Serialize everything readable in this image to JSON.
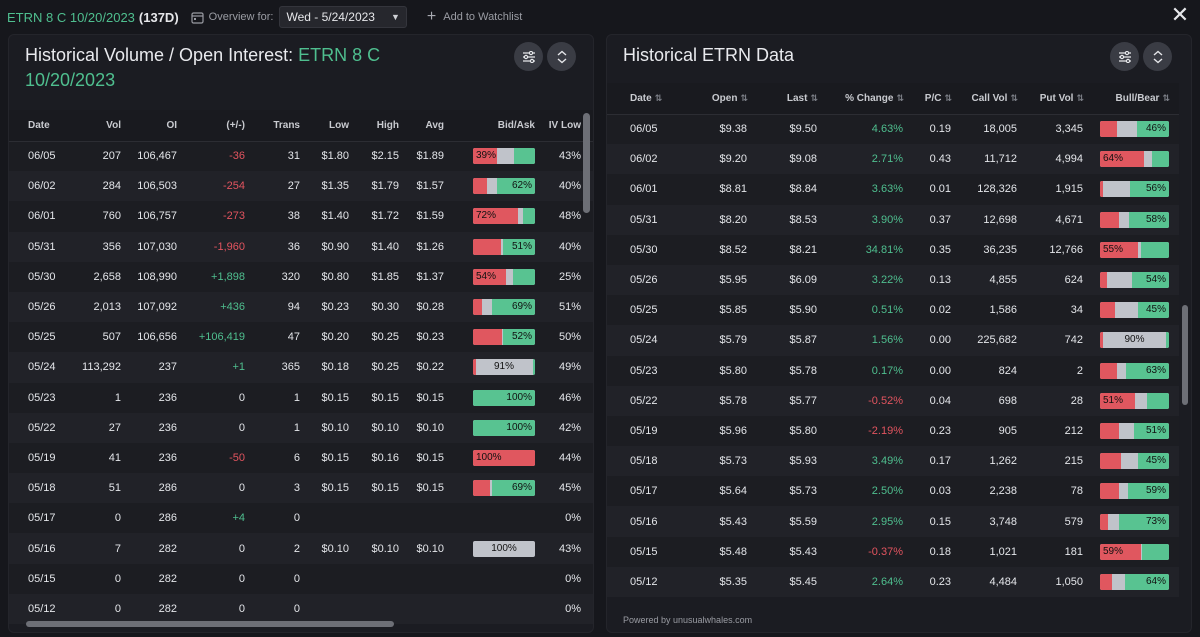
{
  "header": {
    "contract": "ETRN 8 C 10/20/2023",
    "days": "(137D)",
    "overview_label": "Overview for:",
    "overview_date": "Wed - 5/24/2023",
    "add_watchlist": "Add to Watchlist",
    "close": "✕"
  },
  "left_panel": {
    "title_prefix": "Historical Volume / Open Interest: ",
    "title_contract_line1": "ETRN 8 C",
    "title_contract_line2": "10/20/2023",
    "columns": [
      "Date",
      "Vol",
      "OI",
      "(+/-)",
      "Trans",
      "Low",
      "High",
      "Avg",
      "Bid/Ask",
      "IV Low",
      "IV"
    ],
    "rows": [
      {
        "date": "06/05",
        "vol": "207",
        "oi": "106,467",
        "chg": "-36",
        "chg_dir": "neg",
        "trans": "31",
        "low": "$1.80",
        "high": "$2.15",
        "avg": "$1.89",
        "bar": {
          "red": 0.39,
          "grey": 0.27,
          "green": 0.34,
          "label": "39%",
          "label_side": "left"
        },
        "ivlow": "43%"
      },
      {
        "date": "06/02",
        "vol": "284",
        "oi": "106,503",
        "chg": "-254",
        "chg_dir": "neg",
        "trans": "27",
        "low": "$1.35",
        "high": "$1.79",
        "avg": "$1.57",
        "bar": {
          "red": 0.22,
          "grey": 0.16,
          "green": 0.62,
          "label": "62%",
          "label_side": "right"
        },
        "ivlow": "40%"
      },
      {
        "date": "06/01",
        "vol": "760",
        "oi": "106,757",
        "chg": "-273",
        "chg_dir": "neg",
        "trans": "38",
        "low": "$1.40",
        "high": "$1.72",
        "avg": "$1.59",
        "bar": {
          "red": 0.72,
          "grey": 0.08,
          "green": 0.2,
          "label": "72%",
          "label_side": "left"
        },
        "ivlow": "48%"
      },
      {
        "date": "05/31",
        "vol": "356",
        "oi": "107,030",
        "chg": "-1,960",
        "chg_dir": "neg",
        "trans": "36",
        "low": "$0.90",
        "high": "$1.40",
        "avg": "$1.26",
        "bar": {
          "red": 0.45,
          "grey": 0.04,
          "green": 0.51,
          "label": "51%",
          "label_side": "right"
        },
        "ivlow": "40%"
      },
      {
        "date": "05/30",
        "vol": "2,658",
        "oi": "108,990",
        "chg": "+1,898",
        "chg_dir": "pos",
        "trans": "320",
        "low": "$0.80",
        "high": "$1.85",
        "avg": "$1.37",
        "bar": {
          "red": 0.54,
          "grey": 0.1,
          "green": 0.36,
          "label": "54%",
          "label_side": "left"
        },
        "ivlow": "25%"
      },
      {
        "date": "05/26",
        "vol": "2,013",
        "oi": "107,092",
        "chg": "+436",
        "chg_dir": "pos",
        "trans": "94",
        "low": "$0.23",
        "high": "$0.30",
        "avg": "$0.28",
        "bar": {
          "red": 0.15,
          "grey": 0.16,
          "green": 0.69,
          "label": "69%",
          "label_side": "right"
        },
        "ivlow": "51%"
      },
      {
        "date": "05/25",
        "vol": "507",
        "oi": "106,656",
        "chg": "+106,419",
        "chg_dir": "pos",
        "trans": "47",
        "low": "$0.20",
        "high": "$0.25",
        "avg": "$0.23",
        "bar": {
          "red": 0.46,
          "grey": 0.02,
          "green": 0.52,
          "label": "52%",
          "label_side": "right"
        },
        "ivlow": "50%"
      },
      {
        "date": "05/24",
        "vol": "113,292",
        "oi": "237",
        "chg": "+1",
        "chg_dir": "pos",
        "trans": "365",
        "low": "$0.18",
        "high": "$0.25",
        "avg": "$0.22",
        "bar": {
          "red": 0.05,
          "grey": 0.91,
          "green": 0.04,
          "label": "91%",
          "label_side": "center"
        },
        "ivlow": "49%"
      },
      {
        "date": "05/23",
        "vol": "1",
        "oi": "236",
        "chg": "0",
        "chg_dir": "none",
        "trans": "1",
        "low": "$0.15",
        "high": "$0.15",
        "avg": "$0.15",
        "bar": {
          "red": 0,
          "grey": 0,
          "green": 1.0,
          "label": "100%",
          "label_side": "right"
        },
        "ivlow": "46%"
      },
      {
        "date": "05/22",
        "vol": "27",
        "oi": "236",
        "chg": "0",
        "chg_dir": "none",
        "trans": "1",
        "low": "$0.10",
        "high": "$0.10",
        "avg": "$0.10",
        "bar": {
          "red": 0,
          "grey": 0,
          "green": 1.0,
          "label": "100%",
          "label_side": "right"
        },
        "ivlow": "42%"
      },
      {
        "date": "05/19",
        "vol": "41",
        "oi": "236",
        "chg": "-50",
        "chg_dir": "neg",
        "trans": "6",
        "low": "$0.15",
        "high": "$0.16",
        "avg": "$0.15",
        "bar": {
          "red": 1.0,
          "grey": 0,
          "green": 0,
          "label": "100%",
          "label_side": "left"
        },
        "ivlow": "44%"
      },
      {
        "date": "05/18",
        "vol": "51",
        "oi": "286",
        "chg": "0",
        "chg_dir": "none",
        "trans": "3",
        "low": "$0.15",
        "high": "$0.15",
        "avg": "$0.15",
        "bar": {
          "red": 0.27,
          "grey": 0.04,
          "green": 0.69,
          "label": "69%",
          "label_side": "right"
        },
        "ivlow": "45%"
      },
      {
        "date": "05/17",
        "vol": "0",
        "oi": "286",
        "chg": "+4",
        "chg_dir": "pos",
        "trans": "0",
        "low": "",
        "high": "",
        "avg": "",
        "bar": null,
        "ivlow": "0%"
      },
      {
        "date": "05/16",
        "vol": "7",
        "oi": "282",
        "chg": "0",
        "chg_dir": "none",
        "trans": "2",
        "low": "$0.10",
        "high": "$0.10",
        "avg": "$0.10",
        "bar": {
          "red": 0,
          "grey": 1.0,
          "green": 0,
          "label": "100%",
          "label_side": "center"
        },
        "ivlow": "43%"
      },
      {
        "date": "05/15",
        "vol": "0",
        "oi": "282",
        "chg": "0",
        "chg_dir": "none",
        "trans": "0",
        "low": "",
        "high": "",
        "avg": "",
        "bar": null,
        "ivlow": "0%"
      },
      {
        "date": "05/12",
        "vol": "0",
        "oi": "282",
        "chg": "0",
        "chg_dir": "none",
        "trans": "0",
        "low": "",
        "high": "",
        "avg": "",
        "bar": null,
        "ivlow": "0%"
      }
    ]
  },
  "right_panel": {
    "title": "Historical ETRN Data",
    "columns": [
      "Date",
      "Open",
      "Last",
      "% Change",
      "P/C",
      "Call Vol",
      "Put Vol",
      "Bull/Bear"
    ],
    "sort_glyph": "⇅",
    "powered_by": "Powered by unusualwhales.com",
    "rows": [
      {
        "date": "06/05",
        "open": "$9.38",
        "last": "$9.50",
        "chg": "4.63%",
        "chg_dir": "pos",
        "pc": "0.19",
        "call": "18,005",
        "put": "3,345",
        "bar": {
          "red": 0.24,
          "grey": 0.3,
          "green": 0.46,
          "label": "46%",
          "label_side": "right"
        }
      },
      {
        "date": "06/02",
        "open": "$9.20",
        "last": "$9.08",
        "chg": "2.71%",
        "chg_dir": "pos",
        "pc": "0.43",
        "call": "11,712",
        "put": "4,994",
        "bar": {
          "red": 0.64,
          "grey": 0.12,
          "green": 0.24,
          "label": "64%",
          "label_side": "left"
        }
      },
      {
        "date": "06/01",
        "open": "$8.81",
        "last": "$8.84",
        "chg": "3.63%",
        "chg_dir": "pos",
        "pc": "0.01",
        "call": "128,326",
        "put": "1,915",
        "bar": {
          "red": 0.05,
          "grey": 0.39,
          "green": 0.56,
          "label": "56%",
          "label_side": "right"
        }
      },
      {
        "date": "05/31",
        "open": "$8.20",
        "last": "$8.53",
        "chg": "3.90%",
        "chg_dir": "pos",
        "pc": "0.37",
        "call": "12,698",
        "put": "4,671",
        "bar": {
          "red": 0.27,
          "grey": 0.15,
          "green": 0.58,
          "label": "58%",
          "label_side": "right"
        }
      },
      {
        "date": "05/30",
        "open": "$8.52",
        "last": "$8.21",
        "chg": "34.81%",
        "chg_dir": "pos",
        "pc": "0.35",
        "call": "36,235",
        "put": "12,766",
        "bar": {
          "red": 0.55,
          "grey": 0.05,
          "green": 0.4,
          "label": "55%",
          "label_side": "left"
        }
      },
      {
        "date": "05/26",
        "open": "$5.95",
        "last": "$6.09",
        "chg": "3.22%",
        "chg_dir": "pos",
        "pc": "0.13",
        "call": "4,855",
        "put": "624",
        "bar": {
          "red": 0.1,
          "grey": 0.36,
          "green": 0.54,
          "label": "54%",
          "label_side": "right"
        }
      },
      {
        "date": "05/25",
        "open": "$5.85",
        "last": "$5.90",
        "chg": "0.51%",
        "chg_dir": "pos",
        "pc": "0.02",
        "call": "1,586",
        "put": "34",
        "bar": {
          "red": 0.22,
          "grey": 0.33,
          "green": 0.45,
          "label": "45%",
          "label_side": "right"
        }
      },
      {
        "date": "05/24",
        "open": "$5.79",
        "last": "$5.87",
        "chg": "1.56%",
        "chg_dir": "pos",
        "pc": "0.00",
        "call": "225,682",
        "put": "742",
        "bar": {
          "red": 0.05,
          "grey": 0.9,
          "green": 0.05,
          "label": "90%",
          "label_side": "center"
        }
      },
      {
        "date": "05/23",
        "open": "$5.80",
        "last": "$5.78",
        "chg": "0.17%",
        "chg_dir": "pos",
        "pc": "0.00",
        "call": "824",
        "put": "2",
        "bar": {
          "red": 0.25,
          "grey": 0.12,
          "green": 0.63,
          "label": "63%",
          "label_side": "right"
        }
      },
      {
        "date": "05/22",
        "open": "$5.78",
        "last": "$5.77",
        "chg": "-0.52%",
        "chg_dir": "neg",
        "pc": "0.04",
        "call": "698",
        "put": "28",
        "bar": {
          "red": 0.51,
          "grey": 0.17,
          "green": 0.32,
          "label": "51%",
          "label_side": "left"
        }
      },
      {
        "date": "05/19",
        "open": "$5.96",
        "last": "$5.80",
        "chg": "-2.19%",
        "chg_dir": "neg",
        "pc": "0.23",
        "call": "905",
        "put": "212",
        "bar": {
          "red": 0.27,
          "grey": 0.22,
          "green": 0.51,
          "label": "51%",
          "label_side": "right"
        }
      },
      {
        "date": "05/18",
        "open": "$5.73",
        "last": "$5.93",
        "chg": "3.49%",
        "chg_dir": "pos",
        "pc": "0.17",
        "call": "1,262",
        "put": "215",
        "bar": {
          "red": 0.31,
          "grey": 0.24,
          "green": 0.45,
          "label": "45%",
          "label_side": "right"
        }
      },
      {
        "date": "05/17",
        "open": "$5.64",
        "last": "$5.73",
        "chg": "2.50%",
        "chg_dir": "pos",
        "pc": "0.03",
        "call": "2,238",
        "put": "78",
        "bar": {
          "red": 0.27,
          "grey": 0.14,
          "green": 0.59,
          "label": "59%",
          "label_side": "right"
        }
      },
      {
        "date": "05/16",
        "open": "$5.43",
        "last": "$5.59",
        "chg": "2.95%",
        "chg_dir": "pos",
        "pc": "0.15",
        "call": "3,748",
        "put": "579",
        "bar": {
          "red": 0.11,
          "grey": 0.16,
          "green": 0.73,
          "label": "73%",
          "label_side": "right"
        }
      },
      {
        "date": "05/15",
        "open": "$5.48",
        "last": "$5.43",
        "chg": "-0.37%",
        "chg_dir": "neg",
        "pc": "0.18",
        "call": "1,021",
        "put": "181",
        "bar": {
          "red": 0.59,
          "grey": 0.02,
          "green": 0.39,
          "label": "59%",
          "label_side": "left"
        }
      },
      {
        "date": "05/12",
        "open": "$5.35",
        "last": "$5.45",
        "chg": "2.64%",
        "chg_dir": "pos",
        "pc": "0.23",
        "call": "4,484",
        "put": "1,050",
        "bar": {
          "red": 0.18,
          "grey": 0.18,
          "green": 0.64,
          "label": "64%",
          "label_side": "right"
        }
      }
    ]
  },
  "colors": {
    "accent_green": "#4fbf8f",
    "negative_red": "#e2545f",
    "bar_red": "#e0575f",
    "bar_green": "#58c391",
    "bar_grey": "#c0c3ca",
    "background": "#16171c"
  }
}
